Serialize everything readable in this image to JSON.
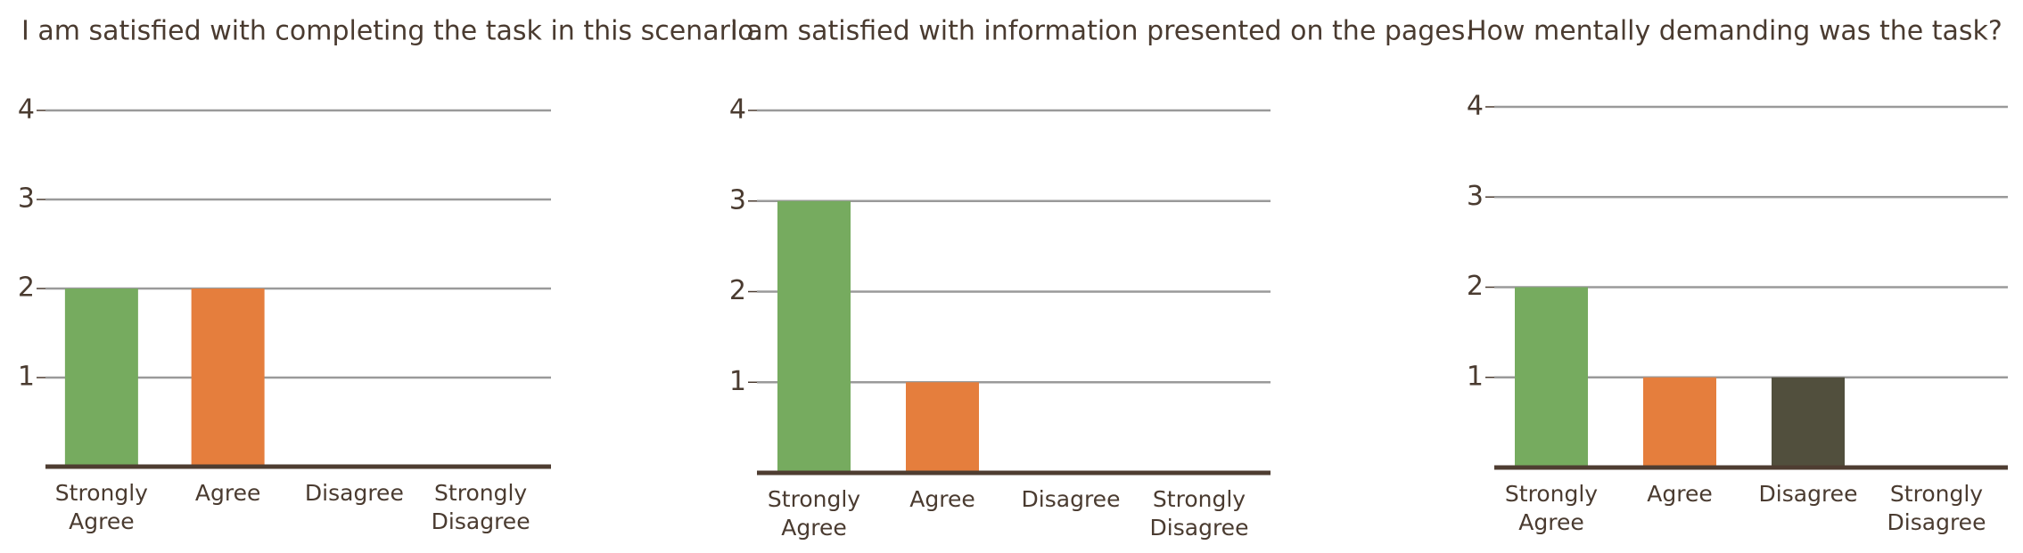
{
  "chart_data": [
    {
      "type": "bar",
      "title": "I am satisfied with completing the task in this scenario.",
      "categories": [
        "Strongly Agree",
        "Agree",
        "Disagree",
        "Strongly Disagree"
      ],
      "values": [
        2,
        2,
        0,
        0
      ],
      "colors": [
        "#76ab5f",
        "#e57e3d",
        "#514f3d",
        "#514f3d"
      ],
      "ylim": [
        0,
        4
      ],
      "yticks": [
        1,
        2,
        3,
        4
      ],
      "grid": true
    },
    {
      "type": "bar",
      "title": "I am satisfied with information presented on the pages.",
      "categories": [
        "Strongly Agree",
        "Agree",
        "Disagree",
        "Strongly Disagree"
      ],
      "values": [
        3,
        1,
        0,
        0
      ],
      "colors": [
        "#76ab5f",
        "#e57e3d",
        "#514f3d",
        "#514f3d"
      ],
      "ylim": [
        0,
        4
      ],
      "yticks": [
        1,
        2,
        3,
        4
      ],
      "grid": true
    },
    {
      "type": "bar",
      "title": "How mentally demanding was the task?",
      "categories": [
        "Strongly Agree",
        "Agree",
        "Disagree",
        "Strongly Disagree"
      ],
      "values": [
        2,
        1,
        1,
        0
      ],
      "colors": [
        "#76ab5f",
        "#e57e3d",
        "#514f3d",
        "#514f3d"
      ],
      "ylim": [
        0,
        4
      ],
      "yticks": [
        1,
        2,
        3,
        4
      ],
      "grid": true
    }
  ]
}
